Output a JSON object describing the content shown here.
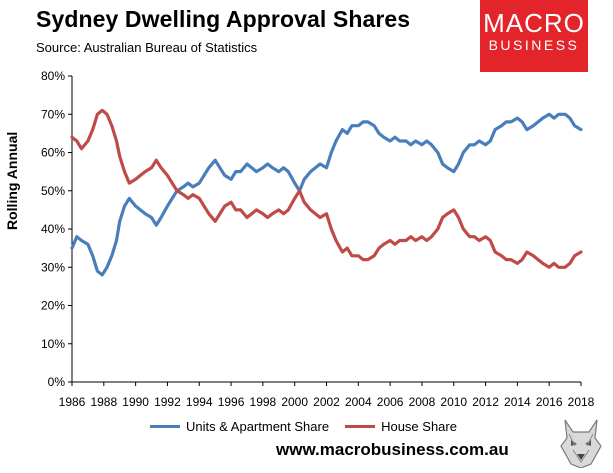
{
  "header": {
    "title": "Sydney Dwelling Approval Shares",
    "subtitle": "Source: Australian Bureau of Statistics"
  },
  "logo": {
    "line1": "MACRO",
    "line2": "BUSINESS"
  },
  "footer": {
    "website": "www.macrobusiness.com.au"
  },
  "colors": {
    "units": "#4a7ebb",
    "house": "#be4b48",
    "logo_bg": "#e3242b"
  },
  "chart_data": {
    "type": "line",
    "ylabel": "Rolling Annual",
    "ylim": [
      0,
      80
    ],
    "xlim": [
      1986,
      2018
    ],
    "yticks": [
      "0%",
      "10%",
      "20%",
      "30%",
      "40%",
      "50%",
      "60%",
      "70%",
      "80%"
    ],
    "xticks": [
      "1986",
      "1988",
      "1990",
      "1992",
      "1994",
      "1996",
      "1998",
      "2000",
      "2002",
      "2004",
      "2006",
      "2008",
      "2010",
      "2012",
      "2014",
      "2016",
      "2018"
    ],
    "legend_position": "bottom",
    "grid": false,
    "series": [
      {
        "name": "Units & Apartment Share",
        "color": "#4a7ebb",
        "points": [
          [
            1986.0,
            35
          ],
          [
            1986.3,
            38
          ],
          [
            1986.6,
            37
          ],
          [
            1987.0,
            36
          ],
          [
            1987.3,
            33
          ],
          [
            1987.6,
            29
          ],
          [
            1987.9,
            28
          ],
          [
            1988.2,
            30
          ],
          [
            1988.5,
            33
          ],
          [
            1988.8,
            37
          ],
          [
            1989.0,
            42
          ],
          [
            1989.3,
            46
          ],
          [
            1989.6,
            48
          ],
          [
            1990.0,
            46
          ],
          [
            1990.3,
            45
          ],
          [
            1990.6,
            44
          ],
          [
            1991.0,
            43
          ],
          [
            1991.3,
            41
          ],
          [
            1991.6,
            43
          ],
          [
            1992.0,
            46
          ],
          [
            1992.3,
            48
          ],
          [
            1992.6,
            50
          ],
          [
            1993.0,
            51
          ],
          [
            1993.3,
            52
          ],
          [
            1993.6,
            51
          ],
          [
            1994.0,
            52
          ],
          [
            1994.3,
            54
          ],
          [
            1994.6,
            56
          ],
          [
            1995.0,
            58
          ],
          [
            1995.3,
            56
          ],
          [
            1995.6,
            54
          ],
          [
            1996.0,
            53
          ],
          [
            1996.3,
            55
          ],
          [
            1996.6,
            55
          ],
          [
            1997.0,
            57
          ],
          [
            1997.3,
            56
          ],
          [
            1997.6,
            55
          ],
          [
            1998.0,
            56
          ],
          [
            1998.3,
            57
          ],
          [
            1998.6,
            56
          ],
          [
            1999.0,
            55
          ],
          [
            1999.3,
            56
          ],
          [
            1999.6,
            55
          ],
          [
            2000.0,
            52
          ],
          [
            2000.3,
            50
          ],
          [
            2000.6,
            53
          ],
          [
            2001.0,
            55
          ],
          [
            2001.3,
            56
          ],
          [
            2001.6,
            57
          ],
          [
            2002.0,
            56
          ],
          [
            2002.3,
            60
          ],
          [
            2002.6,
            63
          ],
          [
            2003.0,
            66
          ],
          [
            2003.3,
            65
          ],
          [
            2003.6,
            67
          ],
          [
            2004.0,
            67
          ],
          [
            2004.3,
            68
          ],
          [
            2004.6,
            68
          ],
          [
            2005.0,
            67
          ],
          [
            2005.3,
            65
          ],
          [
            2005.6,
            64
          ],
          [
            2006.0,
            63
          ],
          [
            2006.3,
            64
          ],
          [
            2006.6,
            63
          ],
          [
            2007.0,
            63
          ],
          [
            2007.3,
            62
          ],
          [
            2007.6,
            63
          ],
          [
            2008.0,
            62
          ],
          [
            2008.3,
            63
          ],
          [
            2008.6,
            62
          ],
          [
            2009.0,
            60
          ],
          [
            2009.3,
            57
          ],
          [
            2009.6,
            56
          ],
          [
            2010.0,
            55
          ],
          [
            2010.3,
            57
          ],
          [
            2010.6,
            60
          ],
          [
            2011.0,
            62
          ],
          [
            2011.3,
            62
          ],
          [
            2011.6,
            63
          ],
          [
            2012.0,
            62
          ],
          [
            2012.3,
            63
          ],
          [
            2012.6,
            66
          ],
          [
            2013.0,
            67
          ],
          [
            2013.3,
            68
          ],
          [
            2013.6,
            68
          ],
          [
            2014.0,
            69
          ],
          [
            2014.3,
            68
          ],
          [
            2014.6,
            66
          ],
          [
            2015.0,
            67
          ],
          [
            2015.3,
            68
          ],
          [
            2015.6,
            69
          ],
          [
            2016.0,
            70
          ],
          [
            2016.3,
            69
          ],
          [
            2016.6,
            70
          ],
          [
            2017.0,
            70
          ],
          [
            2017.3,
            69
          ],
          [
            2017.6,
            67
          ],
          [
            2018.0,
            66
          ]
        ]
      },
      {
        "name": "House Share",
        "color": "#be4b48",
        "points": [
          [
            1986.0,
            64
          ],
          [
            1986.3,
            63
          ],
          [
            1986.6,
            61
          ],
          [
            1987.0,
            63
          ],
          [
            1987.3,
            66
          ],
          [
            1987.6,
            70
          ],
          [
            1987.9,
            71
          ],
          [
            1988.2,
            70
          ],
          [
            1988.5,
            67
          ],
          [
            1988.8,
            63
          ],
          [
            1989.0,
            59
          ],
          [
            1989.3,
            55
          ],
          [
            1989.6,
            52
          ],
          [
            1990.0,
            53
          ],
          [
            1990.3,
            54
          ],
          [
            1990.6,
            55
          ],
          [
            1991.0,
            56
          ],
          [
            1991.3,
            58
          ],
          [
            1991.6,
            56
          ],
          [
            1992.0,
            54
          ],
          [
            1992.3,
            52
          ],
          [
            1992.6,
            50
          ],
          [
            1993.0,
            49
          ],
          [
            1993.3,
            48
          ],
          [
            1993.6,
            49
          ],
          [
            1994.0,
            48
          ],
          [
            1994.3,
            46
          ],
          [
            1994.6,
            44
          ],
          [
            1995.0,
            42
          ],
          [
            1995.3,
            44
          ],
          [
            1995.6,
            46
          ],
          [
            1996.0,
            47
          ],
          [
            1996.3,
            45
          ],
          [
            1996.6,
            45
          ],
          [
            1997.0,
            43
          ],
          [
            1997.3,
            44
          ],
          [
            1997.6,
            45
          ],
          [
            1998.0,
            44
          ],
          [
            1998.3,
            43
          ],
          [
            1998.6,
            44
          ],
          [
            1999.0,
            45
          ],
          [
            1999.3,
            44
          ],
          [
            1999.6,
            45
          ],
          [
            2000.0,
            48
          ],
          [
            2000.3,
            50
          ],
          [
            2000.6,
            47
          ],
          [
            2001.0,
            45
          ],
          [
            2001.3,
            44
          ],
          [
            2001.6,
            43
          ],
          [
            2002.0,
            44
          ],
          [
            2002.3,
            40
          ],
          [
            2002.6,
            37
          ],
          [
            2003.0,
            34
          ],
          [
            2003.3,
            35
          ],
          [
            2003.6,
            33
          ],
          [
            2004.0,
            33
          ],
          [
            2004.3,
            32
          ],
          [
            2004.6,
            32
          ],
          [
            2005.0,
            33
          ],
          [
            2005.3,
            35
          ],
          [
            2005.6,
            36
          ],
          [
            2006.0,
            37
          ],
          [
            2006.3,
            36
          ],
          [
            2006.6,
            37
          ],
          [
            2007.0,
            37
          ],
          [
            2007.3,
            38
          ],
          [
            2007.6,
            37
          ],
          [
            2008.0,
            38
          ],
          [
            2008.3,
            37
          ],
          [
            2008.6,
            38
          ],
          [
            2009.0,
            40
          ],
          [
            2009.3,
            43
          ],
          [
            2009.6,
            44
          ],
          [
            2010.0,
            45
          ],
          [
            2010.3,
            43
          ],
          [
            2010.6,
            40
          ],
          [
            2011.0,
            38
          ],
          [
            2011.3,
            38
          ],
          [
            2011.6,
            37
          ],
          [
            2012.0,
            38
          ],
          [
            2012.3,
            37
          ],
          [
            2012.6,
            34
          ],
          [
            2013.0,
            33
          ],
          [
            2013.3,
            32
          ],
          [
            2013.6,
            32
          ],
          [
            2014.0,
            31
          ],
          [
            2014.3,
            32
          ],
          [
            2014.6,
            34
          ],
          [
            2015.0,
            33
          ],
          [
            2015.3,
            32
          ],
          [
            2015.6,
            31
          ],
          [
            2016.0,
            30
          ],
          [
            2016.3,
            31
          ],
          [
            2016.6,
            30
          ],
          [
            2017.0,
            30
          ],
          [
            2017.3,
            31
          ],
          [
            2017.6,
            33
          ],
          [
            2018.0,
            34
          ]
        ]
      }
    ]
  }
}
